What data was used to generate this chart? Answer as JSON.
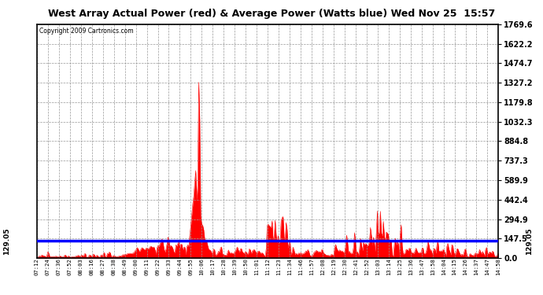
{
  "title": "West Array Actual Power (red) & Average Power (Watts blue) Wed Nov 25  15:57",
  "copyright": "Copyright 2009 Cartronics.com",
  "avg_power": 129.05,
  "ymax": 1769.6,
  "yticks": [
    0.0,
    147.5,
    294.9,
    442.4,
    589.9,
    737.3,
    884.8,
    1032.3,
    1179.8,
    1327.2,
    1474.7,
    1622.2,
    1769.6
  ],
  "time_labels": [
    "07:12",
    "07:24",
    "07:36",
    "07:52",
    "08:03",
    "08:16",
    "08:27",
    "08:38",
    "08:49",
    "09:00",
    "09:11",
    "09:22",
    "09:33",
    "09:44",
    "09:55",
    "10:06",
    "10:17",
    "10:28",
    "10:39",
    "10:50",
    "11:01",
    "11:12",
    "11:23",
    "11:34",
    "11:46",
    "11:57",
    "12:08",
    "12:19",
    "12:30",
    "12:41",
    "12:52",
    "13:03",
    "13:14",
    "13:25",
    "13:36",
    "13:47",
    "13:58",
    "14:04",
    "14:15",
    "14:26",
    "14:37",
    "14:47",
    "14:58"
  ],
  "bg_color": "#ffffff",
  "grid_color": "#aaaaaa",
  "title_bg": "#cccccc",
  "red_color": "#ff0000",
  "blue_color": "#0000ff",
  "n_points": 466
}
